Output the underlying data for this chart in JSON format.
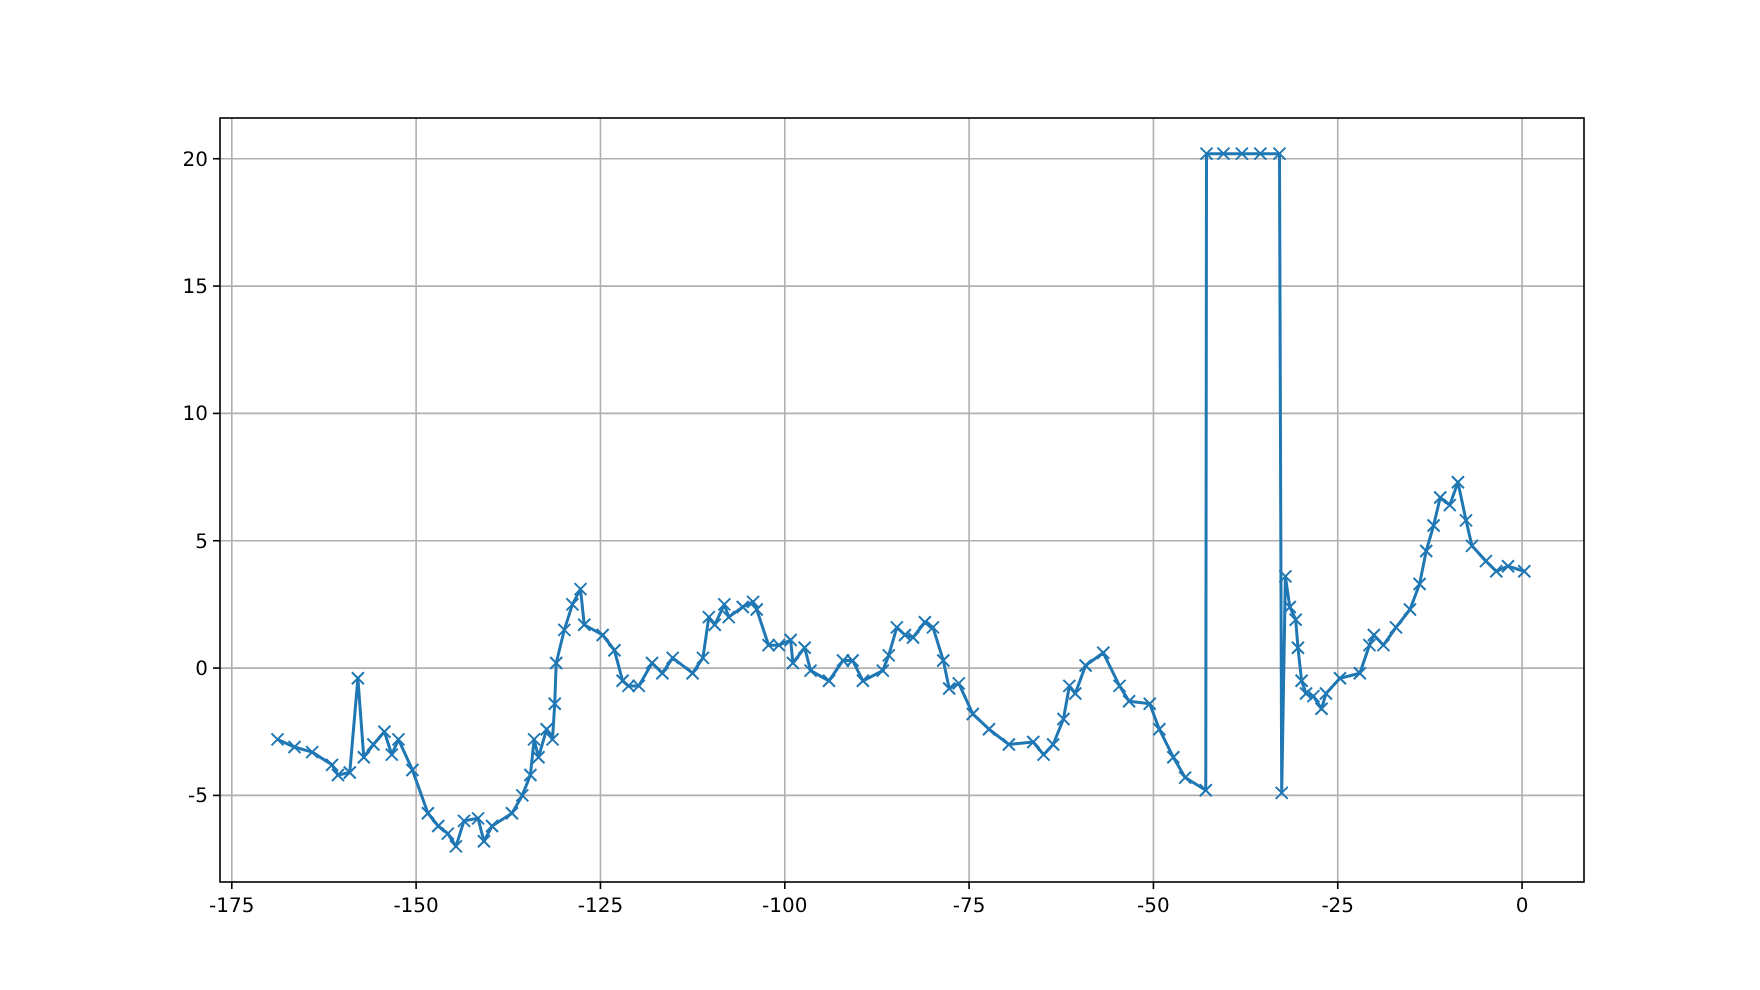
{
  "chart_data": {
    "type": "line",
    "marker": "cross",
    "grid": true,
    "xlim": [
      -176.6,
      8.4
    ],
    "ylim": [
      -8.4,
      21.6
    ],
    "xticks": [
      -175,
      -150,
      -125,
      -100,
      -75,
      -50,
      -25,
      0
    ],
    "yticks": [
      -5,
      0,
      5,
      10,
      15,
      20
    ],
    "series": [
      {
        "color": "#1f77b4",
        "x": [
          -168.8,
          -166.5,
          -164.1,
          -161.4,
          -160.6,
          -159,
          -157.9,
          -157.1,
          -155.8,
          -154.3,
          -153.3,
          -152.4,
          -150.5,
          -148.4,
          -147,
          -145.7,
          -144.6,
          -143.5,
          -141.6,
          -140.8,
          -139.7,
          -137,
          -135.6,
          -134.5,
          -134,
          -133.4,
          -132.3,
          -131.5,
          -131.2,
          -131,
          -129.9,
          -128.8,
          -127.7,
          -127.2,
          -124.7,
          -123.1,
          -122,
          -121.2,
          -119.8,
          -118,
          -116.6,
          -115.2,
          -112.5,
          -111.1,
          -110.3,
          -109.5,
          -108.2,
          -107.6,
          -105.7,
          -104.3,
          -103.8,
          -102.2,
          -100.8,
          -99.2,
          -98.9,
          -97.3,
          -96.5,
          -94,
          -92.1,
          -90.8,
          -89.4,
          -86.7,
          -85.9,
          -84.8,
          -83.7,
          -82.6,
          -81,
          -79.9,
          -78.5,
          -77.7,
          -76.4,
          -74.5,
          -72.3,
          -69.6,
          -66.3,
          -64.9,
          -63.6,
          -62.2,
          -61.4,
          -60.6,
          -59.2,
          -56.8,
          -54.6,
          -53.3,
          -50.5,
          -49.2,
          -47.3,
          -45.7,
          -42.9,
          -42.8,
          -40.5,
          -38,
          -35.5,
          -32.9,
          -32.6,
          -32.1,
          -31.5,
          -30.7,
          -30.4,
          -29.9,
          -29.3,
          -28.3,
          -27.2,
          -26.6,
          -24.7,
          -22,
          -20.7,
          -20.1,
          -18.8,
          -17.1,
          -15.2,
          -13.9,
          -13,
          -12,
          -11.1,
          -9.8,
          -8.7,
          -7.6,
          -6.8,
          -4.9,
          -3.5,
          -1.9,
          0.3
        ],
        "values": [
          -2.8,
          -3.1,
          -3.3,
          -3.8,
          -4.2,
          -4.1,
          -0.4,
          -3.5,
          -3.0,
          -2.5,
          -3.4,
          -2.8,
          -4.0,
          -5.7,
          -6.2,
          -6.5,
          -7.0,
          -6.0,
          -5.9,
          -6.8,
          -6.2,
          -5.7,
          -5.0,
          -4.2,
          -2.8,
          -3.5,
          -2.4,
          -2.8,
          -1.4,
          0.2,
          1.5,
          2.5,
          3.1,
          1.7,
          1.3,
          0.7,
          -0.5,
          -0.7,
          -0.7,
          0.2,
          -0.2,
          0.4,
          -0.2,
          0.4,
          2.0,
          1.7,
          2.5,
          2.0,
          2.4,
          2.6,
          2.3,
          0.9,
          0.9,
          1.1,
          0.2,
          0.8,
          -0.1,
          -0.5,
          0.3,
          0.3,
          -0.5,
          -0.1,
          0.5,
          1.6,
          1.3,
          1.2,
          1.8,
          1.6,
          0.3,
          -0.8,
          -0.6,
          -1.8,
          -2.4,
          -3.0,
          -2.9,
          -3.4,
          -3.0,
          -2.0,
          -0.7,
          -1.0,
          0.1,
          0.6,
          -0.7,
          -1.3,
          -1.4,
          -2.4,
          -3.5,
          -4.3,
          -4.8,
          20.2,
          20.2,
          20.2,
          20.2,
          20.2,
          -4.9,
          3.6,
          2.4,
          1.9,
          0.8,
          -0.5,
          -1.0,
          -1.1,
          -1.6,
          -1.0,
          -0.4,
          -0.2,
          0.9,
          1.3,
          0.9,
          1.6,
          2.3,
          3.3,
          4.6,
          5.6,
          6.7,
          6.4,
          7.3,
          5.8,
          4.8,
          4.2,
          3.8,
          4.0,
          3.8
        ]
      }
    ]
  }
}
